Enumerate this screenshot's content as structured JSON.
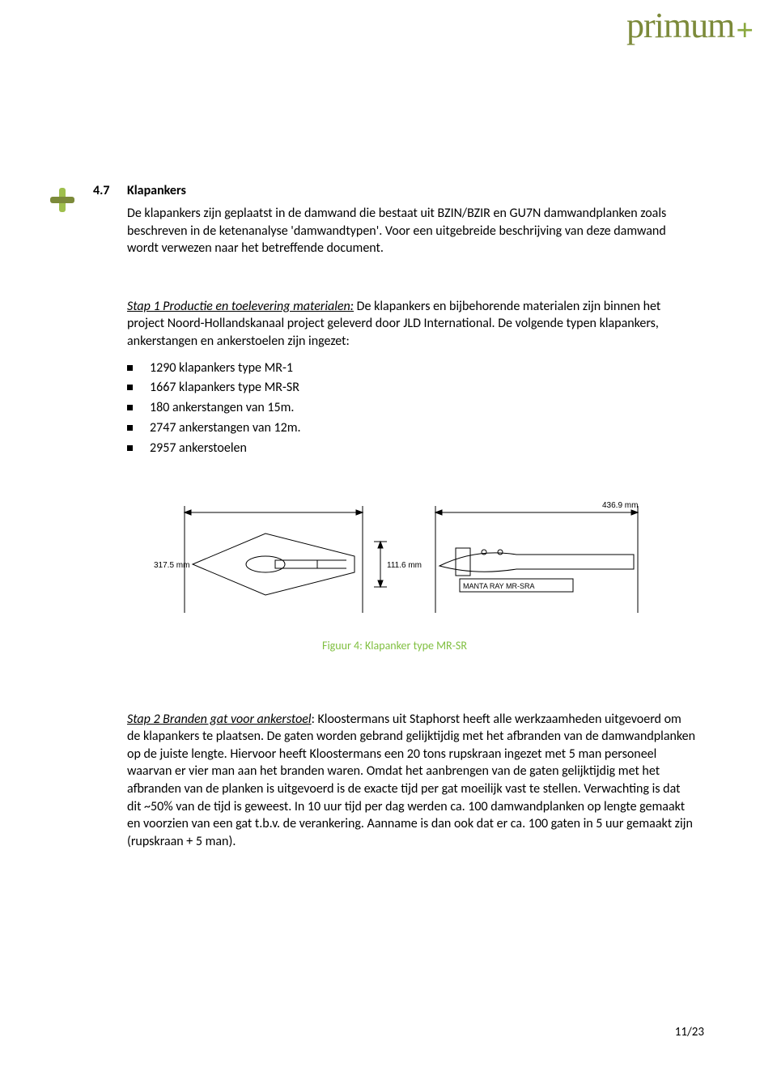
{
  "colors": {
    "brand": "#7c8a3a",
    "caption": "#7fbf3f",
    "text": "#000000",
    "background": "#ffffff",
    "diagram_stroke": "#000000"
  },
  "logo": {
    "text": "primum"
  },
  "section": {
    "number": "4.7",
    "title": "Klapankers"
  },
  "intro": {
    "p1": "De klapankers zijn geplaatst in de damwand die bestaat uit BZIN/BZIR en GU7N damwandplanken zoals beschreven in de ketenanalyse 'damwandtypen'. Voor een uitgebreide beschrijving van deze damwand wordt verwezen naar het betreffende document."
  },
  "stap1": {
    "lead_under": "Stap 1 Productie en toelevering materialen:",
    "lead_rest": " De klapankers en bijbehorende materialen zijn binnen het project Noord-Hollandskanaal project geleverd door JLD International. De volgende typen klapankers, ankerstangen en ankerstoelen zijn ingezet:"
  },
  "items": [
    "1290 klapankers type MR-1",
    "1667 klapankers type MR-SR",
    "180 ankerstangen van 15m.",
    "2747 ankerstangen van 12m.",
    "2957 ankerstoelen"
  ],
  "figure": {
    "caption": "Figuur 4: Klapanker type MR-SR",
    "left": {
      "width_label": "317.5 mm",
      "height_label": "111.6 mm"
    },
    "right": {
      "width_label": "436.9 mm",
      "plate_label": "MANTA RAY MR-SRA"
    },
    "style": {
      "stroke_width": 1,
      "font_size_labels": 10,
      "font_family": "Arial"
    }
  },
  "stap2": {
    "lead_under": "Stap 2 Branden gat voor ankerstoel",
    "rest": ": Kloostermans uit Staphorst heeft alle werkzaamheden uitgevoerd om de klapankers te plaatsen. De gaten worden gebrand gelijktijdig met het afbranden van de damwandplanken op de juiste lengte. Hiervoor heeft Kloostermans een 20 tons rupskraan ingezet met 5 man personeel waarvan er vier man aan het branden waren. Omdat het aanbrengen van de gaten gelijktijdig met het afbranden van de planken is uitgevoerd is de exacte tijd per gat moeilijk vast te stellen. Verwachting is dat dit ~50% van de tijd is geweest. In 10 uur tijd per dag werden ca. 100 damwandplanken op lengte gemaakt en voorzien van een gat t.b.v. de verankering. Aanname is dan ook dat er ca. 100 gaten in 5 uur gemaakt zijn (rupskraan + 5 man)."
  },
  "pagenum": {
    "current": "11",
    "total": "23",
    "sep": "/"
  }
}
